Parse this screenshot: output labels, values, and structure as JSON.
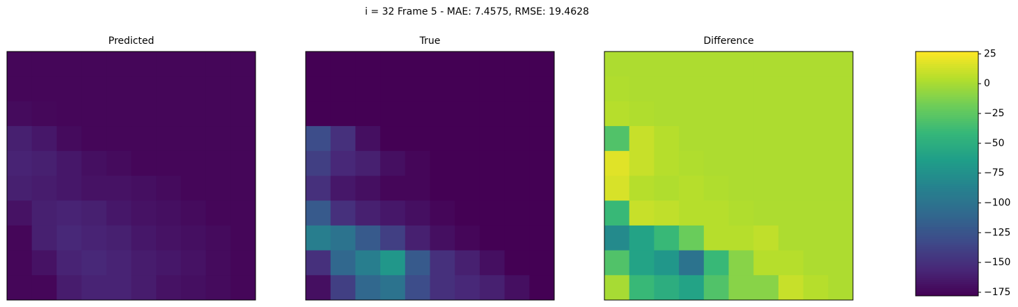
{
  "title": "i = 32 Frame 5 - MAE: 7.4575, RMSE: 19.4628",
  "colorbar": {
    "colormap": "viridis",
    "clim": [
      -178,
      27
    ],
    "ticks": [
      {
        "value": 25,
        "label": "25"
      },
      {
        "value": 0,
        "label": "0"
      },
      {
        "value": -25,
        "label": "−25"
      },
      {
        "value": -50,
        "label": "−50"
      },
      {
        "value": -75,
        "label": "−75"
      },
      {
        "value": -100,
        "label": "−100"
      },
      {
        "value": -125,
        "label": "−125"
      },
      {
        "value": -150,
        "label": "−150"
      },
      {
        "value": -175,
        "label": "−175"
      }
    ]
  },
  "chart_data": [
    {
      "type": "heatmap",
      "title": "Predicted",
      "values": [
        [
          -175,
          -175,
          -175,
          -175,
          -175,
          -175,
          -175,
          -175,
          -175,
          -175
        ],
        [
          -175,
          -175,
          -175,
          -175,
          -175,
          -175,
          -175,
          -175,
          -175,
          -175
        ],
        [
          -172,
          -174,
          -175,
          -175,
          -175,
          -175,
          -175,
          -175,
          -175,
          -175
        ],
        [
          -160,
          -165,
          -172,
          -175,
          -175,
          -175,
          -175,
          -175,
          -175,
          -175
        ],
        [
          -158,
          -160,
          -165,
          -170,
          -172,
          -175,
          -175,
          -175,
          -175,
          -175
        ],
        [
          -160,
          -162,
          -165,
          -168,
          -168,
          -170,
          -172,
          -175,
          -175,
          -175
        ],
        [
          -168,
          -160,
          -158,
          -160,
          -165,
          -168,
          -170,
          -172,
          -175,
          -175
        ],
        [
          -175,
          -160,
          -155,
          -158,
          -160,
          -165,
          -168,
          -170,
          -172,
          -175
        ],
        [
          -175,
          -168,
          -158,
          -155,
          -158,
          -162,
          -165,
          -168,
          -172,
          -175
        ],
        [
          -175,
          -175,
          -162,
          -158,
          -158,
          -162,
          -168,
          -170,
          -172,
          -175
        ]
      ]
    },
    {
      "type": "heatmap",
      "title": "True",
      "values": [
        [
          -178,
          -178,
          -178,
          -178,
          -178,
          -178,
          -178,
          -178,
          -178,
          -178
        ],
        [
          -178,
          -178,
          -178,
          -178,
          -178,
          -178,
          -178,
          -178,
          -178,
          -178
        ],
        [
          -178,
          -178,
          -178,
          -178,
          -178,
          -178,
          -178,
          -178,
          -178,
          -178
        ],
        [
          -130,
          -150,
          -170,
          -178,
          -178,
          -178,
          -178,
          -178,
          -178,
          -178
        ],
        [
          -140,
          -155,
          -160,
          -170,
          -175,
          -178,
          -178,
          -178,
          -178,
          -178
        ],
        [
          -150,
          -165,
          -170,
          -175,
          -175,
          -178,
          -178,
          -178,
          -178,
          -178
        ],
        [
          -120,
          -150,
          -160,
          -165,
          -170,
          -175,
          -178,
          -178,
          -178,
          -178
        ],
        [
          -90,
          -100,
          -120,
          -140,
          -160,
          -170,
          -175,
          -178,
          -178,
          -178
        ],
        [
          -150,
          -110,
          -90,
          -70,
          -120,
          -150,
          -160,
          -170,
          -178,
          -178
        ],
        [
          -170,
          -140,
          -110,
          -100,
          -130,
          -150,
          -155,
          -160,
          -170,
          -178
        ]
      ]
    },
    {
      "type": "heatmap",
      "title": "Difference",
      "values": [
        [
          2,
          2,
          2,
          2,
          2,
          2,
          2,
          2,
          2,
          2
        ],
        [
          3,
          2,
          2,
          2,
          2,
          2,
          2,
          2,
          2,
          2
        ],
        [
          5,
          3,
          2,
          2,
          2,
          2,
          2,
          2,
          2,
          2
        ],
        [
          -30,
          10,
          5,
          2,
          2,
          2,
          2,
          2,
          2,
          2
        ],
        [
          18,
          10,
          5,
          3,
          2,
          2,
          2,
          2,
          2,
          2
        ],
        [
          15,
          5,
          3,
          5,
          3,
          2,
          2,
          2,
          2,
          2
        ],
        [
          -40,
          10,
          8,
          5,
          5,
          3,
          2,
          2,
          2,
          2
        ],
        [
          -80,
          -60,
          -40,
          -20,
          5,
          5,
          8,
          2,
          2,
          2
        ],
        [
          -30,
          -60,
          -70,
          -100,
          -40,
          -10,
          5,
          5,
          2,
          2
        ],
        [
          0,
          -40,
          -50,
          -60,
          -30,
          -10,
          -10,
          10,
          5,
          2
        ]
      ]
    }
  ]
}
